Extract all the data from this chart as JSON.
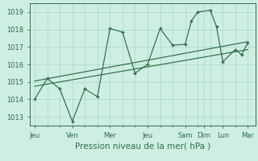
{
  "xlabel": "Pression niveau de la mer( hPa )",
  "bg_color": "#ceeee4",
  "grid_color": "#a8d8cc",
  "line_color": "#2d6e45",
  "ylim": [
    1012.5,
    1019.5
  ],
  "yticks": [
    1013,
    1014,
    1015,
    1016,
    1017,
    1018,
    1019
  ],
  "main_x": [
    0,
    0.5,
    1.0,
    1.5,
    2.0,
    2.5,
    3.0,
    3.5,
    4.0,
    4.5,
    5.0,
    5.5,
    6.0,
    6.25,
    6.5,
    7.0,
    7.25,
    7.5,
    8.0,
    8.25,
    8.5
  ],
  "main_y": [
    1014.0,
    1015.2,
    1014.6,
    1012.75,
    1014.6,
    1014.15,
    1018.05,
    1017.85,
    1015.5,
    1016.0,
    1018.05,
    1017.1,
    1017.15,
    1018.5,
    1019.0,
    1019.1,
    1018.15,
    1016.15,
    1016.85,
    1016.55,
    1017.25
  ],
  "trend1_x": [
    0.0,
    8.5
  ],
  "trend1_y": [
    1015.05,
    1017.3
  ],
  "trend2_x": [
    0.0,
    8.5
  ],
  "trend2_y": [
    1014.75,
    1016.85
  ],
  "xtick_pos": [
    0.0,
    1.5,
    3.0,
    4.5,
    6.0,
    6.75,
    7.5,
    8.5
  ],
  "xtick_labels": [
    "Jeu",
    "Ven",
    "Mer",
    "Jeu",
    "Sam",
    "Dim",
    "Lun",
    "Mar"
  ],
  "minor_xticks": [
    0.0,
    0.5,
    1.0,
    1.5,
    2.0,
    2.5,
    3.0,
    3.5,
    4.0,
    4.5,
    5.0,
    5.5,
    6.0,
    6.5,
    7.0,
    7.5,
    8.0,
    8.5
  ],
  "tick_fontsize": 6.0,
  "xlabel_fontsize": 7.5
}
